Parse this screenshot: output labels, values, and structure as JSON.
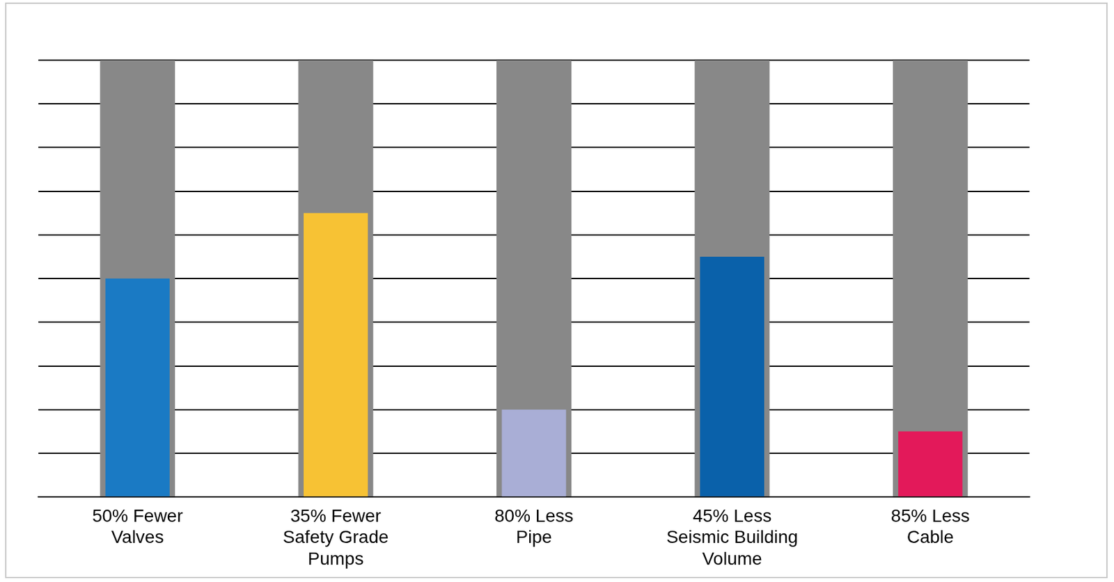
{
  "chart_data": {
    "type": "bar",
    "categories": [
      "50% Fewer Valves",
      "35% Fewer Safety Grade Pumps",
      "80% Less Pipe",
      "45% Less Seismic Building Volume",
      "85% Less Cable"
    ],
    "series": [
      {
        "color": "#888888",
        "values": [
          100,
          100,
          100,
          100,
          100
        ]
      },
      {
        "colors": [
          "#1a7ac4",
          "#f7c234",
          "#a9aed6",
          "#0a61aa",
          "#e3195a"
        ],
        "values": [
          50,
          65,
          20,
          55,
          15
        ]
      }
    ],
    "ylim": [
      0,
      100
    ],
    "yticks": [
      0,
      10,
      20,
      30,
      40,
      50,
      60,
      70,
      80,
      90,
      100
    ],
    "grid": true,
    "tick_labels": "x"
  }
}
